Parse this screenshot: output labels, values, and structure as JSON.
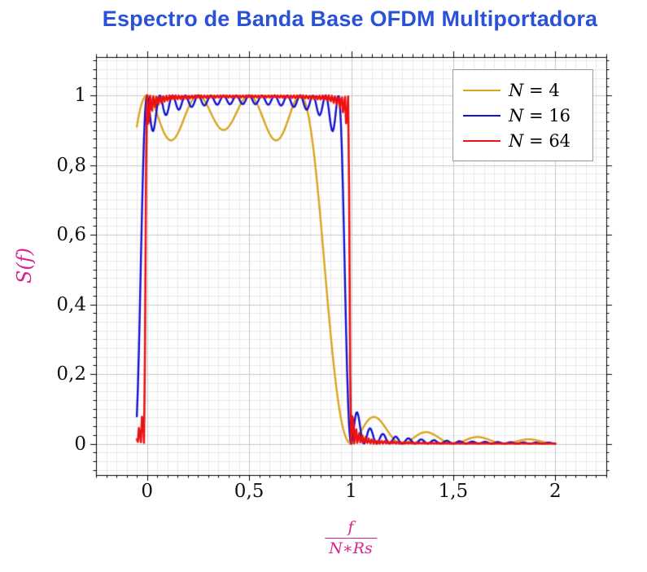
{
  "title": "Espectro de Banda Base OFDM Multiportadora",
  "colors": {
    "title": "#2A52D8",
    "axis_label": "#D62490",
    "frame": "#000000",
    "grid_minor": "#E8E8E8",
    "grid_major": "#C9C9C9",
    "background": "#FFFFFF"
  },
  "chart_data": {
    "type": "line",
    "title": "Espectro de Banda Base OFDM Multiportadora",
    "ylabel": "S(f)",
    "xlabel_numerator": "f",
    "xlabel_denominator": "N∗Rs",
    "xlim": [
      -0.25,
      2.25
    ],
    "ylim": [
      -0.09,
      1.11
    ],
    "x_ticks": [
      0,
      0.5,
      1,
      1.5,
      2
    ],
    "x_tick_labels": [
      "0",
      "0,5",
      "1",
      "1,5",
      "2"
    ],
    "y_ticks": [
      0,
      0.2,
      0.4,
      0.6,
      0.8,
      1
    ],
    "y_tick_labels": [
      "0",
      "0,2",
      "0,4",
      "0,6",
      "0,8",
      "1"
    ],
    "grid": "both",
    "x_minor_step": 0.05,
    "y_minor_step": 0.025,
    "legend_position": "top-right",
    "x_range_plotted": [
      -0.05,
      2.0
    ],
    "samples_per_unit": 200,
    "function": "S(x) = sum_{k=0}^{N-1} sinc^2(N*x - k), sinc(t) = sin(pi*t)/(pi*t); x = f/(N*Rs)",
    "series": [
      {
        "name": "N = 4",
        "var": "N",
        "rest": " = 4",
        "N": 4,
        "color": "#D9A521",
        "width": 2.4
      },
      {
        "name": "N = 16",
        "var": "N",
        "rest": " = 16",
        "N": 16,
        "color": "#1313D2",
        "width": 2.4
      },
      {
        "name": "N = 64",
        "var": "N",
        "rest": " = 64",
        "N": 64,
        "color": "#EC1212",
        "width": 2.6
      }
    ]
  }
}
